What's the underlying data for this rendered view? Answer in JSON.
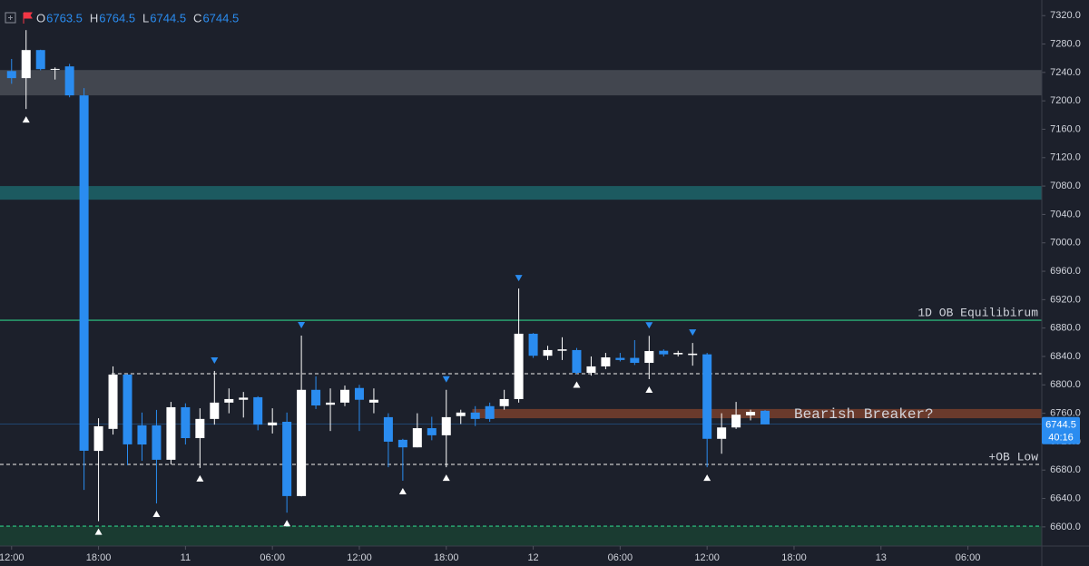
{
  "chart_data": {
    "type": "candlestick",
    "ohlc_header": [
      {
        "label": "O",
        "value": 6763.5
      },
      {
        "label": "H",
        "value": 6764.5
      },
      {
        "label": "L",
        "value": 6744.5
      },
      {
        "label": "C",
        "value": 6744.5
      }
    ],
    "open": [
      7242,
      7232,
      7271.5,
      7244,
      7248.5,
      7207.7,
      6707,
      6738,
      6814.5,
      6743,
      6743,
      6694.5,
      6768.5,
      6725,
      6752,
      6775,
      6779,
      6782.6,
      6743,
      6748,
      6643.4,
      6793,
      6772,
      6775,
      6795.6,
      6775,
      6754.5,
      6722.6,
      6712,
      6739,
      6729,
      6756,
      6761,
      6770,
      6770,
      6780,
      6872,
      6841,
      6848,
      6849,
      6817,
      6826,
      6838,
      6838,
      6831,
      6848,
      6843,
      6842,
      6843,
      6724,
      6740,
      6757,
      6763.5
    ],
    "high": [
      7259,
      7299.6,
      7272,
      7247,
      7252,
      7218,
      6753,
      6826,
      6815,
      6761,
      6764.7,
      6776,
      6774,
      6767,
      6819.6,
      6795,
      6790,
      6784,
      6767,
      6761,
      6869.4,
      6812,
      6795,
      6799,
      6800,
      6795,
      6760,
      6724,
      6760,
      6755,
      6793,
      6765,
      6770,
      6775,
      6793,
      6935.7,
      6873,
      6855,
      6867,
      6852,
      6840,
      6845,
      6845,
      6863,
      6869,
      6850,
      6848,
      6859,
      6845,
      6760,
      6776,
      6765,
      6764.5
    ],
    "low": [
      7224,
      7188.5,
      7243,
      7230,
      7205,
      6652,
      6608,
      6730,
      6687,
      6693,
      6633,
      6688,
      6716,
      6683,
      6744,
      6760,
      6754,
      6736,
      6731.5,
      6620,
      6643,
      6766,
      6735,
      6770,
      6735,
      6760,
      6684,
      6665,
      6712,
      6722,
      6684,
      6745,
      6742,
      6748,
      6765,
      6775,
      6838,
      6835,
      6835,
      6815,
      6813,
      6822,
      6833,
      6828,
      6808,
      6840,
      6840,
      6827,
      6684,
      6703,
      6738,
      6750,
      6744.5
    ],
    "close": [
      7232,
      7271.5,
      7244.7,
      7245,
      7207.7,
      6707.2,
      6741.7,
      6814.5,
      6716.2,
      6716,
      6694.5,
      6768.5,
      6725,
      6752,
      6775,
      6780,
      6782,
      6744,
      6747,
      6643.4,
      6793,
      6771,
      6775,
      6793,
      6779,
      6779,
      6720,
      6712,
      6739,
      6729,
      6754.5,
      6761,
      6752,
      6752,
      6780,
      6872,
      6841,
      6849,
      6850,
      6817,
      6826,
      6838.7,
      6835,
      6831,
      6847.6,
      6843,
      6845,
      6844,
      6724,
      6740,
      6758,
      6762,
      6744.5
    ],
    "up_color": "#ffffff",
    "down_color": "#2a8cf0",
    "xlim": [
      -0.8,
      71.1
    ],
    "xticks": [
      {
        "value": 0,
        "label": "12:00"
      },
      {
        "value": 6,
        "label": "18:00"
      },
      {
        "value": 12,
        "label": "11"
      },
      {
        "value": 18,
        "label": "06:00"
      },
      {
        "value": 24,
        "label": "12:00"
      },
      {
        "value": 30,
        "label": "18:00"
      },
      {
        "value": 36,
        "label": "12"
      },
      {
        "value": 42,
        "label": "06:00"
      },
      {
        "value": 48,
        "label": "12:00"
      },
      {
        "value": 54,
        "label": "18:00"
      },
      {
        "value": 60,
        "label": "13"
      },
      {
        "value": 66,
        "label": "06:00"
      }
    ],
    "ylim": [
      6573,
      7342
    ],
    "yticks": [
      {
        "value": 6600,
        "label": "6600.0"
      },
      {
        "value": 6640,
        "label": "6640.0"
      },
      {
        "value": 6680,
        "label": "6680.0"
      },
      {
        "value": 6720,
        "label": "6720.0"
      },
      {
        "value": 6760,
        "label": "6760.0"
      },
      {
        "value": 6800,
        "label": "6800.0"
      },
      {
        "value": 6840,
        "label": "6840.0"
      },
      {
        "value": 6880,
        "label": "6880.0"
      },
      {
        "value": 6920,
        "label": "6920.0"
      },
      {
        "value": 6960,
        "label": "6960.0"
      },
      {
        "value": 7000,
        "label": "7000.0"
      },
      {
        "value": 7040,
        "label": "7040.0"
      },
      {
        "value": 7080,
        "label": "7080.0"
      },
      {
        "value": 7120,
        "label": "7120.0"
      },
      {
        "value": 7160,
        "label": "7160.0"
      },
      {
        "value": 7200,
        "label": "7200.0"
      },
      {
        "value": 7240,
        "label": "7240.0"
      },
      {
        "value": 7280,
        "label": "7280.0"
      },
      {
        "value": 7320,
        "label": "7320.0"
      }
    ],
    "zones": [
      {
        "from": 7207.7,
        "to": 7243.4,
        "color": "#42464f"
      },
      {
        "from": 7060.8,
        "to": 7080,
        "color": "#1c5a60"
      },
      {
        "from": 6753,
        "to": 6766,
        "color": "#6a3a2c",
        "x_start": 31.8,
        "label": "Bearish Breaker?"
      },
      {
        "from": 6573,
        "to": 6601,
        "color": "#1a3b31"
      }
    ],
    "levels": [
      {
        "value": 6891,
        "color": "#2ecc87",
        "dash": false,
        "label": "1D OB Equilibirum"
      },
      {
        "value": 6815.7,
        "color": "#c8c8c8",
        "dash": true,
        "x_start": 6.9
      },
      {
        "value": 6688,
        "color": "#c8c8c8",
        "dash": true,
        "label": "+OB Low"
      },
      {
        "value": 6601,
        "color": "#2ecc87",
        "dash": true
      }
    ],
    "last_price": {
      "value": 6744.5,
      "countdown": "40:16",
      "color": "#2a8cf0"
    }
  }
}
